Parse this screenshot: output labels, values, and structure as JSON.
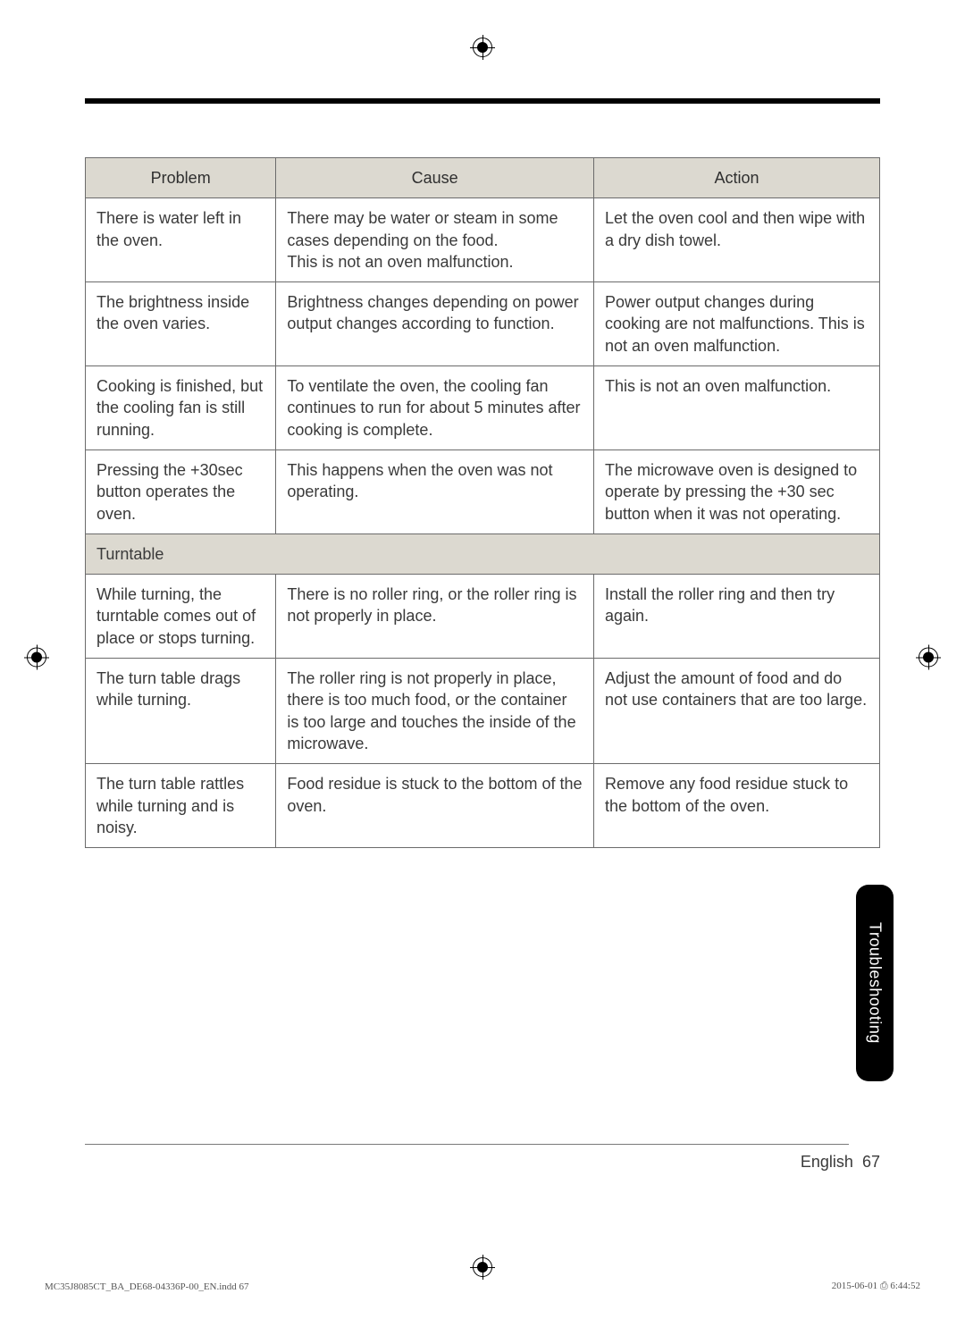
{
  "table": {
    "headers": {
      "problem": "Problem",
      "cause": "Cause",
      "action": "Action"
    },
    "rows": [
      {
        "problem": "There is water left in the oven.",
        "cause": "There may be water or steam in some cases depending on the food.\nThis is not an oven malfunction.",
        "action": "Let the oven cool and then wipe with a dry dish towel."
      },
      {
        "problem": "The brightness inside the oven varies.",
        "cause": "Brightness changes depending on power output changes according to function.",
        "action": "Power output changes during cooking are not malfunctions. This is not an oven malfunction."
      },
      {
        "problem": "Cooking is finished, but the cooling fan is still running.",
        "cause": "To ventilate the oven, the cooling fan continues to run for about 5 minutes after cooking is complete.",
        "action": "This is not an oven malfunction."
      },
      {
        "problem": "Pressing the +30sec button operates the oven.",
        "cause": "This happens when the oven was not operating.",
        "action": "The microwave oven is designed to operate by pressing the +30 sec button when it was not operating."
      }
    ],
    "section": "Turntable",
    "rows2": [
      {
        "problem": "While turning, the turntable comes out of place or stops turning.",
        "cause": "There is no roller ring, or the roller ring is not properly in place.",
        "action": "Install the roller ring and then try again."
      },
      {
        "problem": "The turn table drags while turning.",
        "cause": "The roller ring is not properly in place, there is too much food, or the container is too large and touches the inside of the microwave.",
        "action": "Adjust the amount of food and do not use containers that are too large."
      },
      {
        "problem": "The turn table rattles while turning and is noisy.",
        "cause": "Food residue is stuck to the bottom of the oven.",
        "action": "Remove any food residue stuck to the bottom of the oven."
      }
    ]
  },
  "sideTab": "Troubleshooting",
  "pageLabel": {
    "lang": "English",
    "num": "67"
  },
  "footer": {
    "left": "MC35J8085CT_BA_DE68-04336P-00_EN.indd   67",
    "right": "2015-06-01   ⎙ 6:44:52"
  }
}
